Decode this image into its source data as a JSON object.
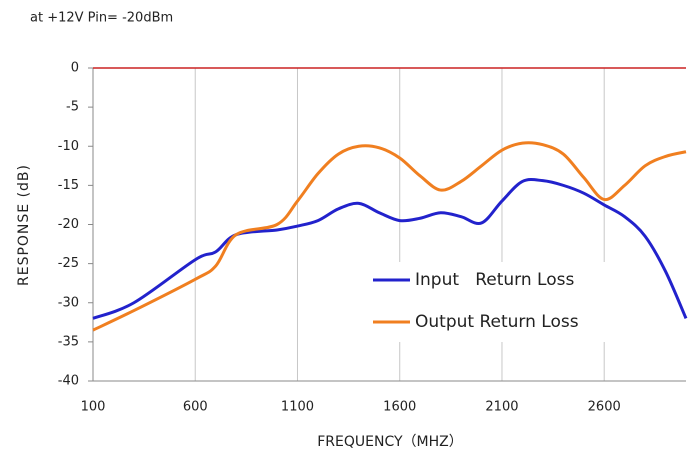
{
  "chart_data": {
    "type": "line",
    "title": "at +12V Pin= -20dBm",
    "xlabel": "FREQUENCY（MHZ）",
    "ylabel": "RESPONSE (dB)",
    "x": [
      100,
      300,
      600,
      700,
      800,
      1000,
      1100,
      1200,
      1300,
      1400,
      1500,
      1600,
      1700,
      1800,
      1900,
      2000,
      2100,
      2200,
      2300,
      2400,
      2500,
      2600,
      2700,
      2800,
      2900,
      3000
    ],
    "series": [
      {
        "name": "Input   Return Loss",
        "color": "#2222cc",
        "values": [
          -32,
          -30,
          -24.5,
          -23.5,
          -21.3,
          -20.7,
          -20.2,
          -19.5,
          -18,
          -17.3,
          -18.5,
          -19.5,
          -19.2,
          -18.5,
          -19,
          -19.8,
          -17,
          -14.5,
          -14.4,
          -15,
          -16,
          -17.5,
          -19,
          -21.5,
          -26,
          -32
        ]
      },
      {
        "name": "Output Return Loss",
        "color": "#f07f20",
        "values": [
          -33.5,
          -31,
          -27,
          -25.3,
          -21.3,
          -20,
          -17,
          -13.5,
          -11,
          -10,
          -10.2,
          -11.5,
          -13.8,
          -15.6,
          -14.5,
          -12.5,
          -10.5,
          -9.6,
          -9.8,
          -11,
          -14,
          -16.8,
          -15,
          -12.5,
          -11.3,
          -10.7
        ]
      }
    ],
    "xlim": [
      100,
      3000
    ],
    "xticks": [
      100,
      600,
      1100,
      1600,
      2100,
      2600
    ],
    "ylim": [
      -40,
      0
    ],
    "yticks": [
      0,
      -5,
      -10,
      -15,
      -20,
      -25,
      -30,
      -35,
      -40
    ],
    "grid": "x",
    "zero_line_color": "#cc2222",
    "legend": "lower right"
  }
}
